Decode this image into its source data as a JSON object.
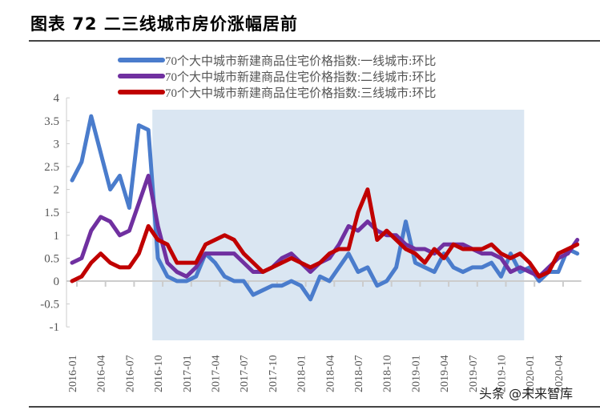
{
  "title": "图表 72  二三线城市房价涨幅居前",
  "watermark": "头条 @未来智库",
  "chart_data": {
    "type": "line",
    "title": "",
    "xlabel": "",
    "ylabel": "",
    "ylim": [
      -1,
      4
    ],
    "yticks": [
      "-1",
      "-0.5",
      "0",
      "0.5",
      "1",
      "1.5",
      "2",
      "2.5",
      "3",
      "3.5",
      "4"
    ],
    "xticks": [
      "2016-01",
      "2016-04",
      "2016-07",
      "2016-10",
      "2017-01",
      "2017-04",
      "2017-07",
      "2017-10",
      "2018-01",
      "2018-04",
      "2018-07",
      "2018-10",
      "2019-01",
      "2019-04",
      "2019-07",
      "2019-10",
      "2020-01",
      "2020-04"
    ],
    "grid": false,
    "legend": "top",
    "shaded_range": [
      "2016-09",
      "2019-12"
    ],
    "shade_color": "#dae6f2",
    "x": [
      "2016-01",
      "2016-02",
      "2016-03",
      "2016-04",
      "2016-05",
      "2016-06",
      "2016-07",
      "2016-08",
      "2016-09",
      "2016-10",
      "2016-11",
      "2016-12",
      "2017-01",
      "2017-02",
      "2017-03",
      "2017-04",
      "2017-05",
      "2017-06",
      "2017-07",
      "2017-08",
      "2017-09",
      "2017-10",
      "2017-11",
      "2017-12",
      "2018-01",
      "2018-02",
      "2018-03",
      "2018-04",
      "2018-05",
      "2018-06",
      "2018-07",
      "2018-08",
      "2018-09",
      "2018-10",
      "2018-11",
      "2018-12",
      "2019-01",
      "2019-02",
      "2019-03",
      "2019-04",
      "2019-05",
      "2019-06",
      "2019-07",
      "2019-08",
      "2019-09",
      "2019-10",
      "2019-11",
      "2019-12",
      "2020-01",
      "2020-02",
      "2020-03",
      "2020-04",
      "2020-05",
      "2020-06"
    ],
    "series": [
      {
        "name": "70个大中城市新建商品住宅价格指数:一线城市:环比",
        "color": "#4a7ccc",
        "values": [
          2.2,
          2.6,
          3.6,
          2.8,
          2.0,
          2.3,
          1.6,
          3.4,
          3.3,
          0.5,
          0.1,
          0.0,
          0.0,
          0.1,
          0.6,
          0.4,
          0.1,
          0.0,
          0.0,
          -0.3,
          -0.2,
          -0.1,
          -0.1,
          0.0,
          -0.1,
          -0.4,
          0.1,
          0.0,
          0.3,
          0.6,
          0.2,
          0.3,
          -0.1,
          0.0,
          0.3,
          1.3,
          0.4,
          0.3,
          0.2,
          0.6,
          0.3,
          0.2,
          0.3,
          0.3,
          0.4,
          0.1,
          0.6,
          0.2,
          0.3,
          0.0,
          0.2,
          0.2,
          0.7,
          0.6
        ]
      },
      {
        "name": "70个大中城市新建商品住宅价格指数:二线城市:环比",
        "color": "#7030a0",
        "values": [
          0.4,
          0.5,
          1.1,
          1.4,
          1.3,
          1.0,
          1.1,
          1.7,
          2.3,
          1.2,
          0.4,
          0.2,
          0.1,
          0.3,
          0.6,
          0.6,
          0.6,
          0.6,
          0.4,
          0.2,
          0.2,
          0.3,
          0.5,
          0.6,
          0.4,
          0.2,
          0.4,
          0.5,
          0.8,
          1.2,
          1.1,
          1.3,
          1.1,
          1.0,
          1.0,
          0.8,
          0.7,
          0.7,
          0.6,
          0.8,
          0.8,
          0.8,
          0.7,
          0.6,
          0.6,
          0.5,
          0.2,
          0.3,
          0.2,
          0.1,
          0.3,
          0.5,
          0.6,
          0.9
        ]
      },
      {
        "name": "70个大中城市新建商品住宅价格指数:三线城市:环比",
        "color": "#c00000",
        "values": [
          0.0,
          0.1,
          0.4,
          0.6,
          0.4,
          0.3,
          0.3,
          0.6,
          1.2,
          0.9,
          0.8,
          0.4,
          0.4,
          0.4,
          0.8,
          0.9,
          1.0,
          0.9,
          0.6,
          0.4,
          0.2,
          0.3,
          0.4,
          0.5,
          0.4,
          0.3,
          0.4,
          0.6,
          0.7,
          0.7,
          1.5,
          2.0,
          0.9,
          1.1,
          0.9,
          0.7,
          0.6,
          0.4,
          0.7,
          0.5,
          0.8,
          0.7,
          0.7,
          0.7,
          0.8,
          0.6,
          0.5,
          0.6,
          0.4,
          0.1,
          0.2,
          0.6,
          0.7,
          0.8
        ]
      }
    ]
  }
}
